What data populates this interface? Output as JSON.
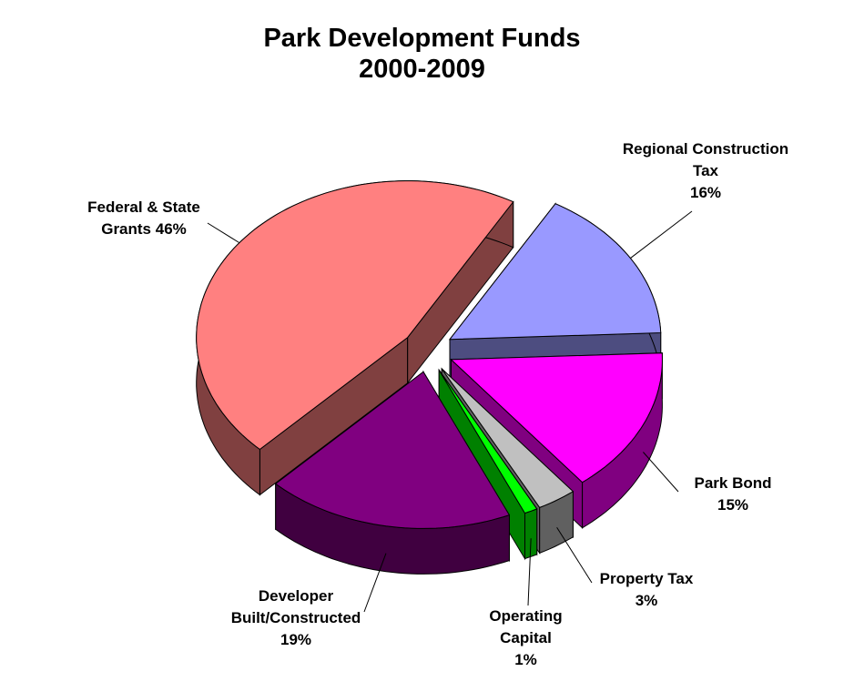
{
  "chart_data": {
    "type": "pie3d",
    "title": "Park Development Funds",
    "subtitle": "2000-2009",
    "categories": [
      "Regional Construction Tax",
      "Park Bond",
      "Property Tax",
      "Operating Capital",
      "Developer Built/Constructed",
      "Federal & State Grants"
    ],
    "values": [
      16,
      15,
      3,
      1,
      19,
      46
    ],
    "value_labels": [
      "16%",
      "15%",
      "3%",
      "1%",
      "19%",
      "46%"
    ],
    "colors": [
      "#9999ff",
      "#ff00ff",
      "#c0c0c0",
      "#00ff00",
      "#800080",
      "#ff8080"
    ]
  }
}
